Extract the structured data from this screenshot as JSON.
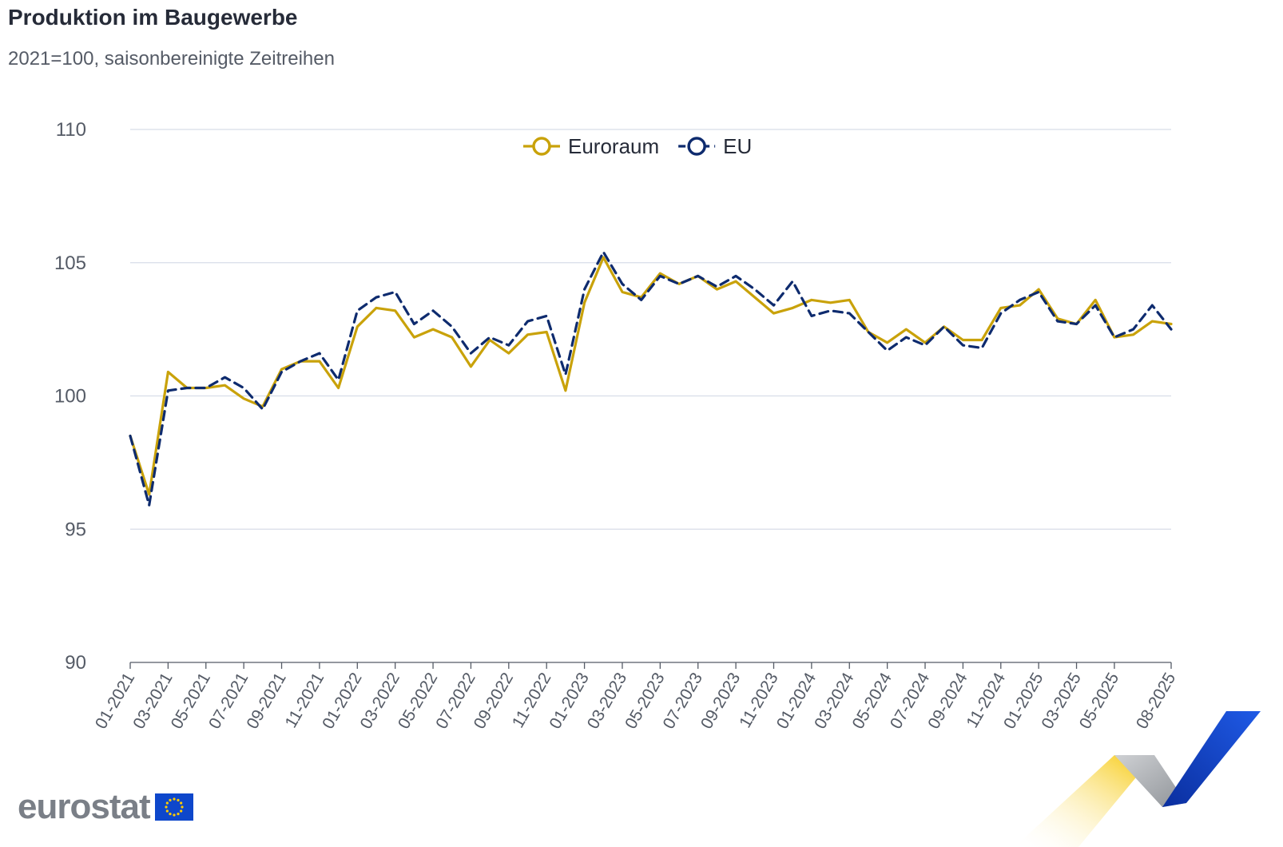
{
  "chart_data": {
    "type": "line",
    "title": "Produktion im Baugewerbe",
    "subtitle": "2021=100, saisonbereinigte Zeitreihen",
    "xlabel": "",
    "ylabel": "",
    "ylim": [
      90,
      110
    ],
    "yticks": [
      "90",
      "95",
      "100",
      "105",
      "110"
    ],
    "xticks": [
      "01-2021",
      "03-2021",
      "05-2021",
      "07-2021",
      "09-2021",
      "11-2021",
      "01-2022",
      "03-2022",
      "05-2022",
      "07-2022",
      "09-2022",
      "11-2022",
      "01-2023",
      "03-2023",
      "05-2023",
      "07-2023",
      "09-2023",
      "11-2023",
      "01-2024",
      "03-2024",
      "05-2024",
      "07-2024",
      "09-2024",
      "11-2024",
      "01-2025",
      "03-2025",
      "05-2025",
      "08-2025"
    ],
    "legend_position": "top-center",
    "x_count": 56,
    "series": [
      {
        "name": "Euroraum",
        "color": "#c9a20a",
        "dash": "solid",
        "values": [
          98.5,
          96.3,
          100.9,
          100.3,
          100.3,
          100.4,
          99.9,
          99.6,
          101.0,
          101.3,
          101.3,
          100.3,
          102.6,
          103.3,
          103.2,
          102.2,
          102.5,
          102.2,
          101.1,
          102.1,
          101.6,
          102.3,
          102.4,
          100.2,
          103.5,
          105.2,
          103.9,
          103.7,
          104.6,
          104.2,
          104.5,
          104.0,
          104.3,
          103.7,
          103.1,
          103.3,
          103.6,
          103.5,
          103.6,
          102.4,
          102.0,
          102.5,
          102.0,
          102.6,
          102.1,
          102.1,
          103.3,
          103.4,
          104.0,
          102.9,
          102.7,
          103.6,
          102.2,
          102.3,
          102.8,
          102.7
        ]
      },
      {
        "name": "EU",
        "color": "#0e2b6e",
        "dash": "dashed",
        "values": [
          98.5,
          95.9,
          100.2,
          100.3,
          100.3,
          100.7,
          100.3,
          99.5,
          100.9,
          101.3,
          101.6,
          100.6,
          103.2,
          103.7,
          103.9,
          102.7,
          103.2,
          102.6,
          101.6,
          102.2,
          101.9,
          102.8,
          103.0,
          100.8,
          104.0,
          105.4,
          104.2,
          103.6,
          104.5,
          104.2,
          104.5,
          104.1,
          104.5,
          104.0,
          103.4,
          104.3,
          103.0,
          103.2,
          103.1,
          102.4,
          101.7,
          102.2,
          101.9,
          102.6,
          101.9,
          101.8,
          103.1,
          103.6,
          103.9,
          102.8,
          102.7,
          103.4,
          102.2,
          102.5,
          103.4,
          102.5
        ]
      }
    ]
  },
  "branding": {
    "logo_text": "eurostat"
  }
}
